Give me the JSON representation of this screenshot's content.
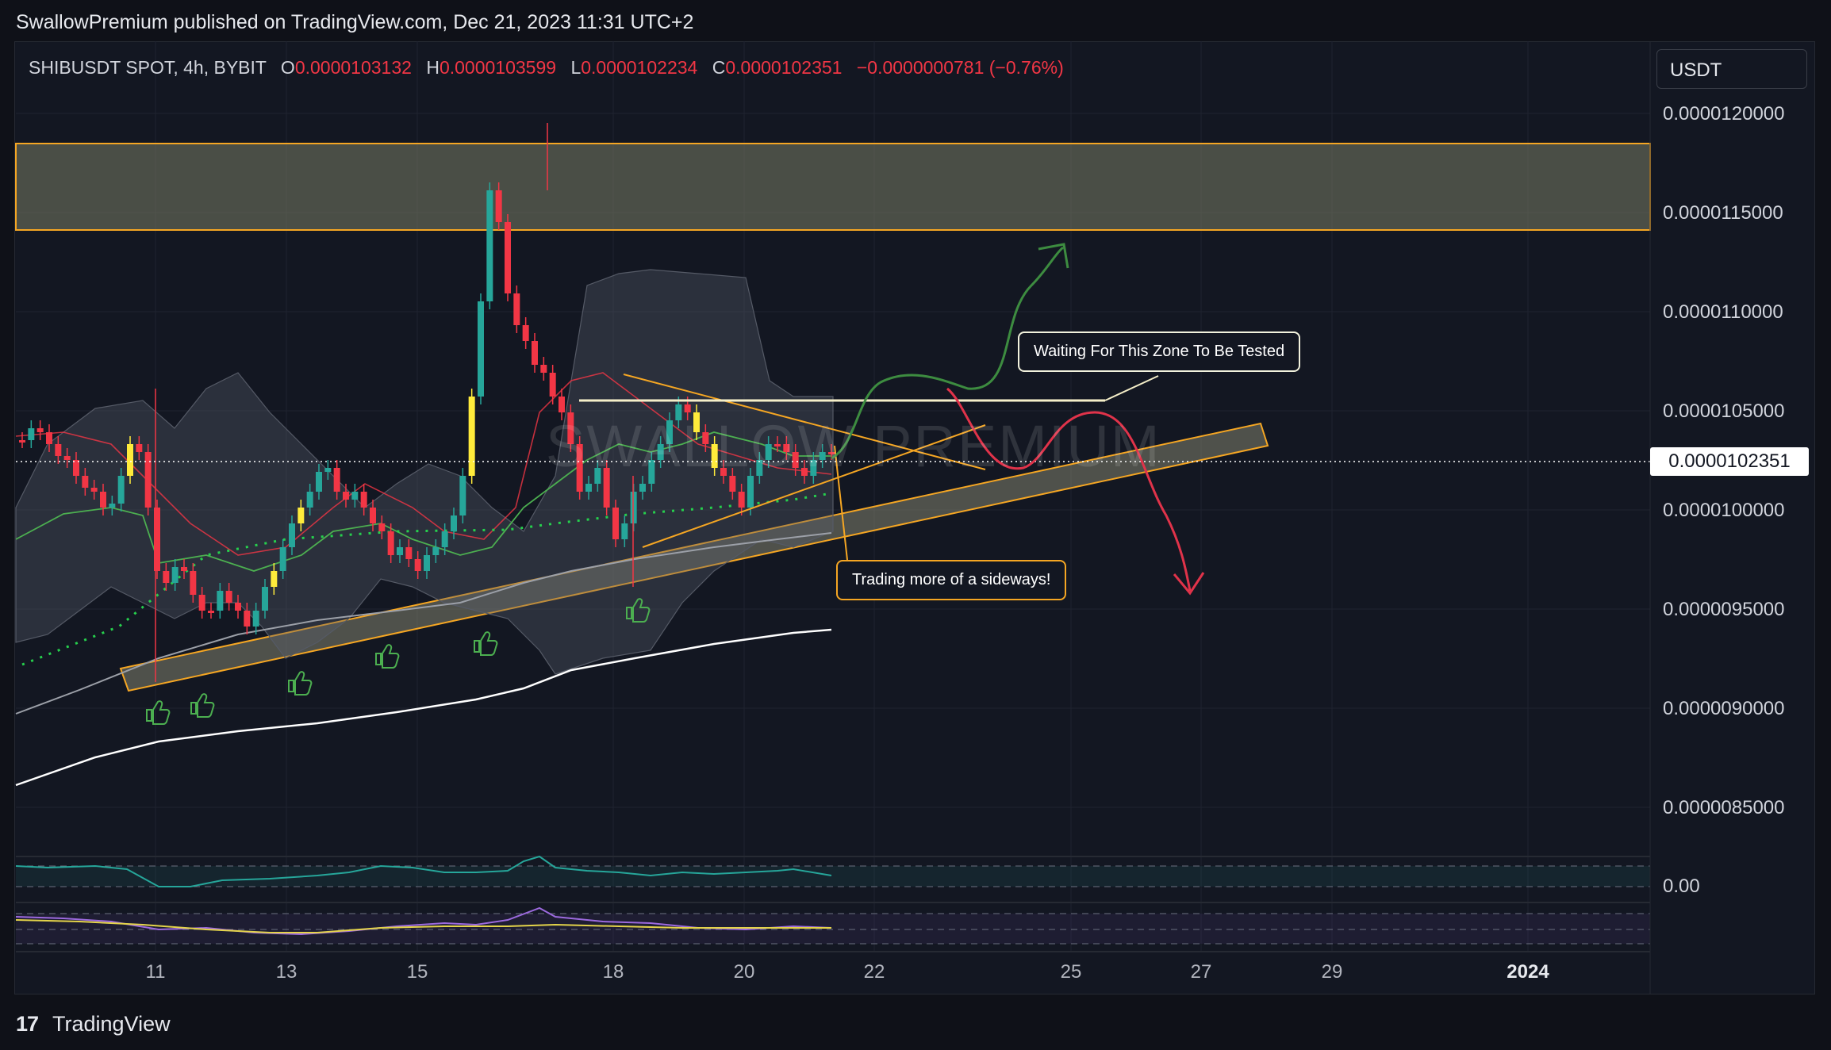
{
  "header": {
    "published_by": "SwallowPremium published on TradingView.com, Dec 21, 2023 11:31 UTC+2"
  },
  "legend": {
    "symbol": "SHIBUSDT SPOT, 4h, BYBIT",
    "o_label": "O",
    "o_value": "0.0000103132",
    "h_label": "H",
    "h_value": "0.0000103599",
    "l_label": "L",
    "l_value": "0.0000102234",
    "c_label": "C",
    "c_value": "0.0000102351",
    "change": "−0.0000000781 (−0.76%)"
  },
  "currency_selector": "USDT",
  "watermark": "SWALLOW PREMIUM",
  "price_axis": [
    "0.0000120000",
    "0.0000115000",
    "0.0000110000",
    "0.0000105000",
    "0.0000100000",
    "0.0000095000",
    "0.0000090000",
    "0.0000085000"
  ],
  "last_price": "0.0000102351",
  "indicator_axis": "0.00",
  "time_axis": [
    {
      "label": "11",
      "bold": false
    },
    {
      "label": "13",
      "bold": false
    },
    {
      "label": "15",
      "bold": false
    },
    {
      "label": "18",
      "bold": false
    },
    {
      "label": "20",
      "bold": false
    },
    {
      "label": "22",
      "bold": false
    },
    {
      "label": "25",
      "bold": false
    },
    {
      "label": "27",
      "bold": false
    },
    {
      "label": "29",
      "bold": false
    },
    {
      "label": "2024",
      "bold": true
    }
  ],
  "annotations": {
    "zone_tested": "Waiting For This Zone To Be Tested",
    "sideways": "Trading more of a sideways!"
  },
  "footer": {
    "logo": "17",
    "brand": "TradingView"
  },
  "colors": {
    "up": "#26a69a",
    "down": "#f23645",
    "highlight_candle": "#ffeb3b",
    "zone": "#f5a623",
    "bull_path": "#3d8c40",
    "bear_path": "#e0334a"
  }
}
